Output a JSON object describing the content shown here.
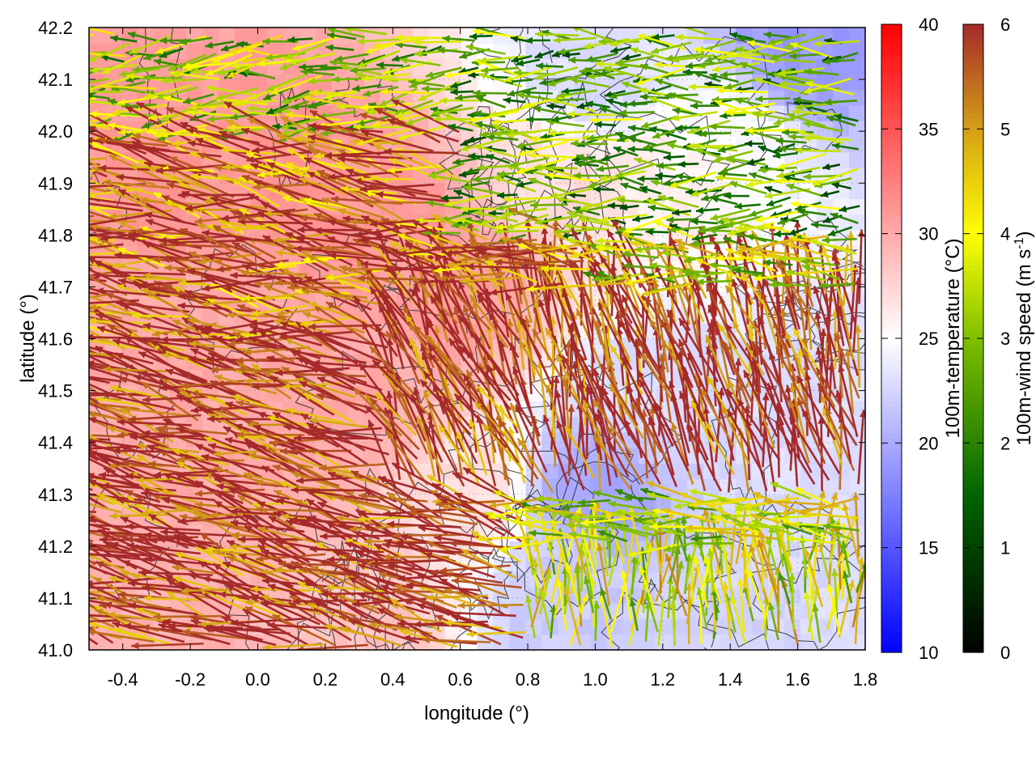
{
  "chart_data": {
    "type": "heatmap",
    "overlays": [
      "vector-field",
      "contour"
    ],
    "xlabel": "longitude (°)",
    "ylabel": "latitude (°)",
    "xlim": [
      -0.5,
      1.8
    ],
    "ylim": [
      41.0,
      42.2
    ],
    "x_ticks": [
      "-0.4",
      "-0.2",
      "0.0",
      "0.2",
      "0.4",
      "0.6",
      "0.8",
      "1.0",
      "1.2",
      "1.4",
      "1.6",
      "1.8"
    ],
    "x_tick_values": [
      -0.4,
      -0.2,
      0.0,
      0.2,
      0.4,
      0.6,
      0.8,
      1.0,
      1.2,
      1.4,
      1.6,
      1.8
    ],
    "y_ticks": [
      "41.0",
      "41.1",
      "41.2",
      "41.3",
      "41.4",
      "41.5",
      "41.6",
      "41.7",
      "41.8",
      "41.9",
      "42.0",
      "42.1",
      "42.2"
    ],
    "y_tick_values": [
      41.0,
      41.1,
      41.2,
      41.3,
      41.4,
      41.5,
      41.6,
      41.7,
      41.8,
      41.9,
      42.0,
      42.1,
      42.2
    ],
    "grid": true,
    "colorbars": [
      {
        "label": "100m-temperature (°C)",
        "range": [
          10,
          40
        ],
        "ticks": [
          "10",
          "15",
          "20",
          "25",
          "30",
          "35",
          "40"
        ],
        "tick_values": [
          10,
          15,
          20,
          25,
          30,
          35,
          40
        ],
        "palette": [
          [
            10,
            "#0000ff"
          ],
          [
            25,
            "#ffffff"
          ],
          [
            40,
            "#ff0000"
          ]
        ]
      },
      {
        "label_parts": [
          "100m-wind speed (m s",
          "-1",
          ")"
        ],
        "range": [
          0,
          6
        ],
        "ticks": [
          "0",
          "1",
          "2",
          "3",
          "4",
          "5",
          "6"
        ],
        "tick_values": [
          0,
          1,
          2,
          3,
          4,
          5,
          6
        ],
        "palette": [
          [
            0,
            "#000000"
          ],
          [
            1.5,
            "#006400"
          ],
          [
            3,
            "#7fbf00"
          ],
          [
            4,
            "#ffff00"
          ],
          [
            5,
            "#d4a017"
          ],
          [
            6,
            "#a52a2a"
          ]
        ]
      }
    ],
    "temperature_regions": [
      {
        "lon": -0.3,
        "lat": 41.9,
        "temp": 31
      },
      {
        "lon": 0.1,
        "lat": 41.9,
        "temp": 31
      },
      {
        "lon": 0.4,
        "lat": 41.8,
        "temp": 31
      },
      {
        "lon": 0.6,
        "lat": 41.7,
        "temp": 30.5
      },
      {
        "lon": -0.2,
        "lat": 41.6,
        "temp": 30
      },
      {
        "lon": 0.3,
        "lat": 41.5,
        "temp": 30
      },
      {
        "lon": 0.0,
        "lat": 41.3,
        "temp": 30
      },
      {
        "lon": -0.3,
        "lat": 41.1,
        "temp": 29.5
      },
      {
        "lon": 0.3,
        "lat": 41.1,
        "temp": 28.5
      },
      {
        "lon": 0.6,
        "lat": 41.3,
        "temp": 27
      },
      {
        "lon": 0.9,
        "lat": 41.9,
        "temp": 27
      },
      {
        "lon": 1.2,
        "lat": 41.9,
        "temp": 26
      },
      {
        "lon": 1.4,
        "lat": 42.0,
        "temp": 25
      },
      {
        "lon": 1.6,
        "lat": 42.15,
        "temp": 19
      },
      {
        "lon": 1.0,
        "lat": 42.1,
        "temp": 23
      },
      {
        "lon": 1.2,
        "lat": 41.5,
        "temp": 23
      },
      {
        "lon": 1.6,
        "lat": 41.4,
        "temp": 23
      },
      {
        "lon": 1.0,
        "lat": 41.3,
        "temp": 20
      },
      {
        "lon": 0.9,
        "lat": 41.1,
        "temp": 22
      },
      {
        "lon": 1.4,
        "lat": 41.1,
        "temp": 22.5
      },
      {
        "lon": 1.7,
        "lat": 41.2,
        "temp": 23
      }
    ],
    "wind_regimes": [
      {
        "lon_range": [
          -0.5,
          0.8
        ],
        "lat_range": [
          41.0,
          41.6
        ],
        "direction_deg": 165,
        "speed": 6
      },
      {
        "lon_range": [
          -0.5,
          1.0
        ],
        "lat_range": [
          41.6,
          42.0
        ],
        "direction_deg": 170,
        "speed": 5.5
      },
      {
        "lon_range": [
          0.4,
          0.8
        ],
        "lat_range": [
          41.3,
          41.7
        ],
        "direction_deg": 115,
        "speed": 6
      },
      {
        "lon_range": [
          0.8,
          1.8
        ],
        "lat_range": [
          41.3,
          41.7
        ],
        "direction_deg": 105,
        "speed": 6
      },
      {
        "lon_range": [
          0.8,
          1.8
        ],
        "lat_range": [
          41.0,
          41.2
        ],
        "direction_deg": 90,
        "speed": 3.8
      },
      {
        "lon_range": [
          0.6,
          1.8
        ],
        "lat_range": [
          41.8,
          42.2
        ],
        "direction_deg": 180,
        "speed": 2.5
      },
      {
        "lon_range": [
          -0.5,
          0.6
        ],
        "lat_range": [
          42.0,
          42.2
        ],
        "direction_deg": 185,
        "speed": 3
      }
    ],
    "contour_color": "#303030"
  }
}
